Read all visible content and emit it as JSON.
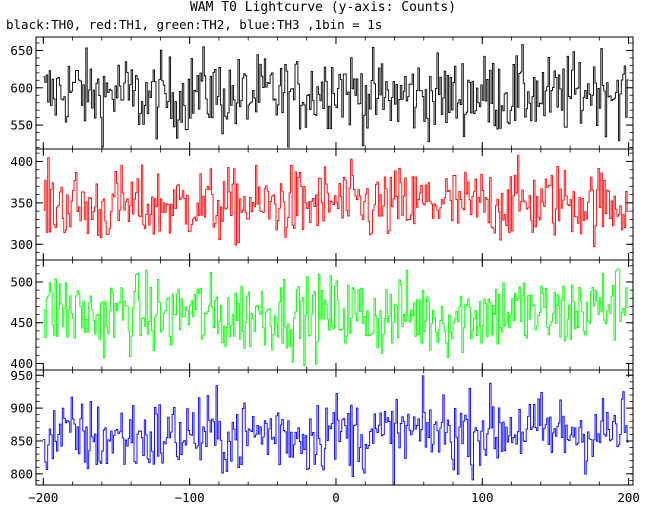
{
  "chart_data": {
    "type": "line",
    "title": "WAM T0 Lightcurve (y-axis: Counts)",
    "subtitle": "black:TH0, red:TH1, green:TH2, blue:TH3 ,1bin = 1s",
    "xlabel": "",
    "xlim": [
      -205,
      203
    ],
    "x_ticks": [
      -200,
      -100,
      0,
      100,
      200
    ],
    "x_tick_labels": [
      "−200",
      "−100",
      "0",
      "100",
      "200"
    ],
    "bin_width": 1,
    "grid": false,
    "legend": "none",
    "panels": [
      {
        "name": "TH0",
        "color": "#000000",
        "ylim": [
          518,
          668
        ],
        "y_ticks": [
          550,
          600,
          650
        ],
        "x": [
          -200,
          -190,
          -180,
          -170,
          -160,
          -150,
          -140,
          -130,
          -120,
          -110,
          -100,
          -90,
          -80,
          -70,
          -60,
          -50,
          -40,
          -30,
          -20,
          -10,
          0,
          10,
          20,
          30,
          40,
          50,
          60,
          70,
          80,
          90,
          100,
          110,
          120,
          130,
          140,
          150,
          160,
          170,
          180,
          190,
          200
        ],
        "mean": [
          588,
          594,
          600,
          592,
          590,
          596,
          588,
          584,
          590,
          586,
          592,
          598,
          590,
          588,
          586,
          592,
          590,
          586,
          594,
          598,
          606,
          596,
          590,
          588,
          586,
          592,
          588,
          590,
          586,
          594,
          590,
          592,
          590,
          594,
          588,
          586,
          592,
          596,
          604,
          596,
          588
        ],
        "spread": 38
      },
      {
        "name": "TH1",
        "color": "#ff0000",
        "ylim": [
          281,
          415
        ],
        "y_ticks": [
          300,
          350,
          400
        ],
        "x": [
          -200,
          -190,
          -180,
          -170,
          -160,
          -150,
          -140,
          -130,
          -120,
          -110,
          -100,
          -90,
          -80,
          -70,
          -60,
          -50,
          -40,
          -30,
          -20,
          -10,
          0,
          10,
          20,
          30,
          40,
          50,
          60,
          70,
          80,
          90,
          100,
          110,
          120,
          130,
          140,
          150,
          160,
          170,
          180,
          190,
          200
        ],
        "mean": [
          346,
          350,
          348,
          344,
          342,
          348,
          346,
          344,
          348,
          346,
          350,
          348,
          346,
          344,
          348,
          346,
          350,
          348,
          346,
          352,
          350,
          348,
          346,
          344,
          348,
          346,
          350,
          352,
          348,
          346,
          350,
          348,
          352,
          350,
          348,
          354,
          352,
          350,
          348,
          350,
          352
        ],
        "spread": 32
      },
      {
        "name": "TH2",
        "color": "#00ff00",
        "ylim": [
          392,
          527
        ],
        "y_ticks": [
          400,
          450,
          500
        ],
        "x": [
          -200,
          -190,
          -180,
          -170,
          -160,
          -150,
          -140,
          -130,
          -120,
          -110,
          -100,
          -90,
          -80,
          -70,
          -60,
          -50,
          -40,
          -30,
          -20,
          -10,
          0,
          10,
          20,
          30,
          40,
          50,
          60,
          70,
          80,
          90,
          100,
          110,
          120,
          130,
          140,
          150,
          160,
          170,
          180,
          190,
          200
        ],
        "mean": [
          462,
          468,
          464,
          458,
          456,
          462,
          464,
          460,
          458,
          462,
          466,
          460,
          458,
          456,
          460,
          462,
          464,
          458,
          456,
          460,
          462,
          464,
          458,
          456,
          460,
          462,
          458,
          456,
          454,
          460,
          462,
          464,
          466,
          462,
          460,
          458,
          462,
          466,
          470,
          476,
          480
        ],
        "spread": 34
      },
      {
        "name": "TH3",
        "color": "#0000ff",
        "ylim": [
          783,
          958
        ],
        "y_ticks": [
          800,
          850,
          900,
          950
        ],
        "x": [
          -200,
          -190,
          -180,
          -170,
          -160,
          -150,
          -140,
          -130,
          -120,
          -110,
          -100,
          -90,
          -80,
          -70,
          -60,
          -50,
          -40,
          -30,
          -20,
          -10,
          0,
          10,
          20,
          30,
          40,
          50,
          60,
          70,
          80,
          90,
          100,
          110,
          120,
          130,
          140,
          150,
          160,
          170,
          180,
          190,
          200
        ],
        "mean": [
          852,
          858,
          860,
          856,
          852,
          856,
          858,
          854,
          856,
          858,
          862,
          860,
          858,
          856,
          860,
          862,
          864,
          860,
          858,
          864,
          866,
          860,
          858,
          856,
          860,
          862,
          864,
          866,
          862,
          864,
          868,
          866,
          870,
          868,
          864,
          862,
          866,
          864,
          862,
          866,
          868
        ],
        "spread": 42
      }
    ]
  }
}
